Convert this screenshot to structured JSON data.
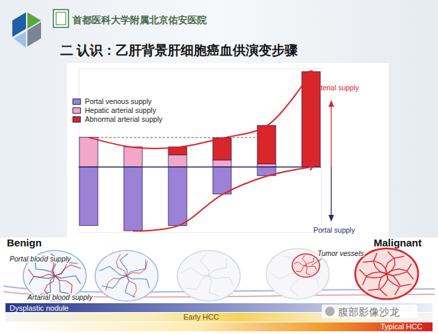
{
  "header": {
    "hospital": "首都医科大学附属北京佑安医院"
  },
  "chart_data": {
    "type": "bar",
    "title": "二 认识：乙肝背景肝细胞癌血供演变步骤",
    "stacked": true,
    "categories": [
      null,
      null,
      null,
      null,
      null,
      null
    ],
    "series": [
      {
        "name": "Portal venous supply",
        "color": "#9b82d6",
        "values": [
          -90,
          -98,
          -90,
          -42,
          -14,
          0
        ]
      },
      {
        "name": "Hepatic arterial supply",
        "color": "#f2a7c9",
        "values": [
          45,
          30,
          18,
          10,
          4,
          0
        ]
      },
      {
        "name": "Abnormal arterial supply",
        "color": "#d8262b",
        "values": [
          0,
          0,
          12,
          34,
          59,
          145
        ]
      }
    ],
    "ylim": [
      -100,
      150
    ],
    "tick_labels": false,
    "legend": "top-left",
    "annotations": [
      {
        "text": "Arterial supply",
        "color": "#d8262b"
      },
      {
        "text": "Portal supply",
        "color": "#2a2a6a"
      }
    ]
  },
  "diagram": {
    "benign_label": "Benign",
    "malignant_label": "Malignant",
    "portal_label": "Portal blood supply",
    "arterial_label": "Artarial blood supply",
    "tumor_label": "Tumor vessels",
    "stages": [
      "Dysplastic nodule",
      "Early HCC",
      "Typical HCC"
    ]
  },
  "watermark": "腹部影像沙龙"
}
